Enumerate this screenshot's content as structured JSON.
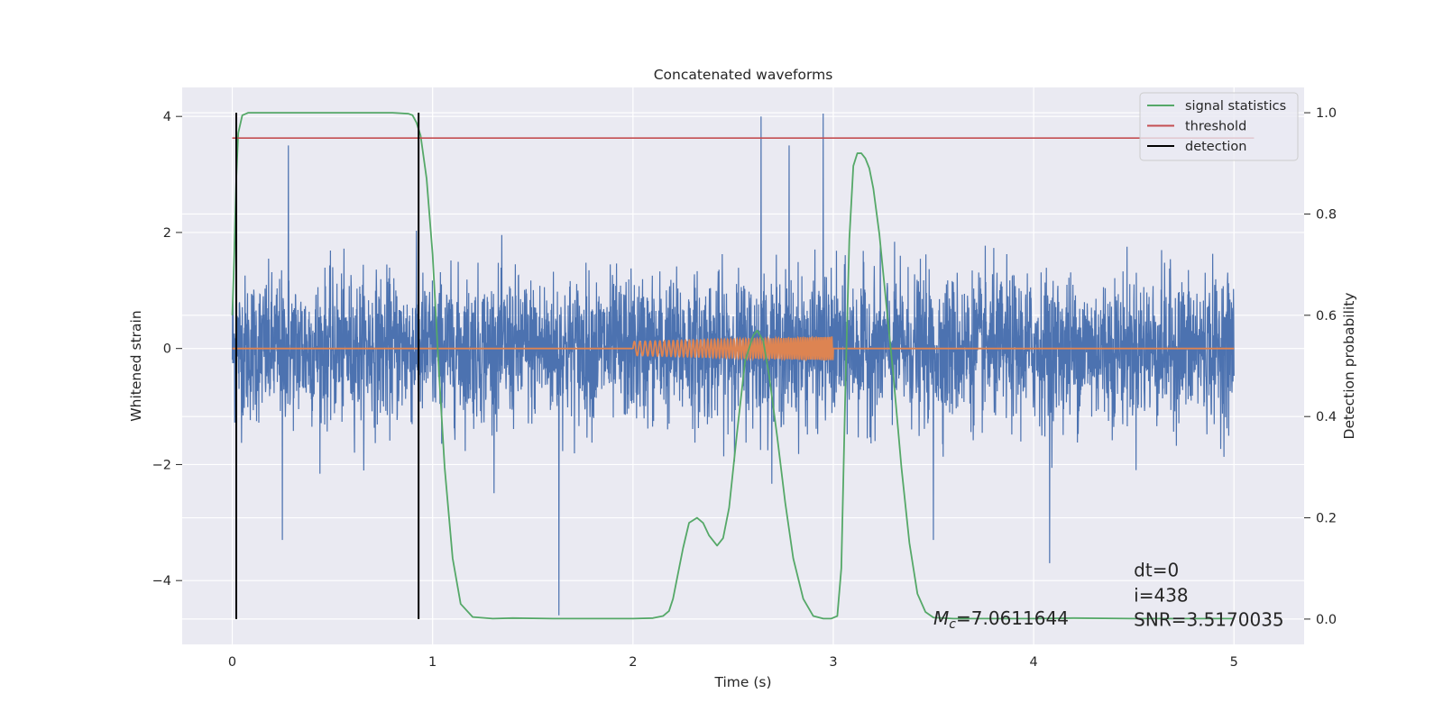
{
  "chart_data": {
    "type": "line",
    "title": "Concatenated waveforms",
    "xlabel": "Time (s)",
    "ylabel": "Whitened strain",
    "ylabel_right": "Detection probability",
    "xlim": [
      -0.25,
      5.35
    ],
    "ylim": [
      -5.1,
      4.5
    ],
    "ylim_right": [
      -0.05,
      1.05
    ],
    "x_ticks": [
      0,
      1,
      2,
      3,
      4,
      5
    ],
    "y_ticks": [
      -4,
      -2,
      0,
      2,
      4
    ],
    "y_ticks_right": [
      0.0,
      0.2,
      0.4,
      0.6,
      0.8,
      1.0
    ],
    "grid": true,
    "legend_position": "upper right",
    "legend": [
      {
        "label": "signal statistics",
        "color": "#55a868"
      },
      {
        "label": "threshold",
        "color": "#c44e52"
      },
      {
        "label": "detection",
        "color": "#000000"
      }
    ],
    "colors": {
      "background": "#eaeaf2",
      "grid": "#ffffff",
      "noise": "#4c72b0",
      "template": "#dd8452",
      "signal_statistics": "#55a868",
      "threshold": "#c44e52",
      "detection": "#000000"
    },
    "series": [
      {
        "axis": "left",
        "color": "#4c72b0",
        "time_range": [
          0,
          5
        ],
        "typical_abs_max": 1.8,
        "peaks": [
          {
            "x": 0.28,
            "y": 3.5
          },
          {
            "x": 2.64,
            "y": 4.0
          },
          {
            "x": 2.95,
            "y": 4.05
          },
          {
            "x": 1.63,
            "y": -4.6
          },
          {
            "x": 4.08,
            "y": -3.7
          },
          {
            "x": 3.5,
            "y": -3.3
          },
          {
            "x": 0.25,
            "y": -3.3
          },
          {
            "x": 2.78,
            "y": 3.5
          }
        ]
      },
      {
        "axis": "left",
        "color": "#dd8452",
        "x": [
          0,
          2,
          3,
          5
        ],
        "y": [
          0,
          0,
          0,
          0
        ],
        "chirp": {
          "x_start": 2.0,
          "x_end": 3.0,
          "amplitude_start": 0.12,
          "amplitude_end": 0.2
        }
      },
      {
        "name": "signal statistics",
        "axis": "right",
        "color": "#55a868",
        "x": [
          0.0,
          0.01,
          0.02,
          0.03,
          0.05,
          0.08,
          0.12,
          0.2,
          0.4,
          0.6,
          0.8,
          0.88,
          0.9,
          0.92,
          0.94,
          0.97,
          1.0,
          1.03,
          1.06,
          1.1,
          1.14,
          1.2,
          1.3,
          1.4,
          1.6,
          1.8,
          2.0,
          2.1,
          2.15,
          2.18,
          2.2,
          2.22,
          2.25,
          2.28,
          2.32,
          2.35,
          2.38,
          2.42,
          2.45,
          2.48,
          2.52,
          2.56,
          2.6,
          2.62,
          2.65,
          2.68,
          2.72,
          2.76,
          2.8,
          2.85,
          2.9,
          2.95,
          2.99,
          3.02,
          3.04,
          3.06,
          3.08,
          3.1,
          3.12,
          3.14,
          3.16,
          3.18,
          3.2,
          3.23,
          3.26,
          3.3,
          3.34,
          3.38,
          3.42,
          3.46,
          3.5,
          3.6,
          3.8,
          4.0,
          4.2,
          4.5,
          4.8,
          5.0
        ],
        "y": [
          0.6,
          0.72,
          0.87,
          0.96,
          0.995,
          1.0,
          1.0,
          1.0,
          1.0,
          1.0,
          1.0,
          0.998,
          0.995,
          0.98,
          0.955,
          0.87,
          0.72,
          0.5,
          0.3,
          0.12,
          0.03,
          0.004,
          0.001,
          0.002,
          0.001,
          0.001,
          0.001,
          0.002,
          0.006,
          0.016,
          0.04,
          0.08,
          0.14,
          0.19,
          0.2,
          0.19,
          0.165,
          0.145,
          0.16,
          0.22,
          0.37,
          0.51,
          0.56,
          0.57,
          0.55,
          0.48,
          0.36,
          0.23,
          0.12,
          0.04,
          0.006,
          0.001,
          0.001,
          0.006,
          0.1,
          0.45,
          0.75,
          0.895,
          0.92,
          0.92,
          0.91,
          0.89,
          0.85,
          0.76,
          0.64,
          0.48,
          0.3,
          0.15,
          0.05,
          0.014,
          0.003,
          0.001,
          0.001,
          0.001,
          0.002,
          0.001,
          0.001,
          0.001
        ]
      },
      {
        "name": "threshold",
        "axis": "right",
        "color": "#c44e52",
        "x": [
          0,
          5.1
        ],
        "y": [
          0.95,
          0.95
        ]
      },
      {
        "name": "detection",
        "axis": "right",
        "color": "#000000",
        "x_lines": [
          0.02,
          0.93
        ],
        "y_span": [
          0,
          1
        ]
      }
    ],
    "annotations": [
      {
        "text": "$M_c$=7.0611644",
        "math_prefix": "M",
        "math_sub": "c",
        "value_text": "=7.0611644",
        "x": 3.5,
        "y": -4.65
      },
      {
        "text": "dt=0",
        "x": 4.5,
        "y": -3.82
      },
      {
        "text": "i=438",
        "x": 4.5,
        "y": -4.25
      },
      {
        "text": "SNR=3.5170035",
        "x": 4.5,
        "y": -4.67
      }
    ]
  }
}
